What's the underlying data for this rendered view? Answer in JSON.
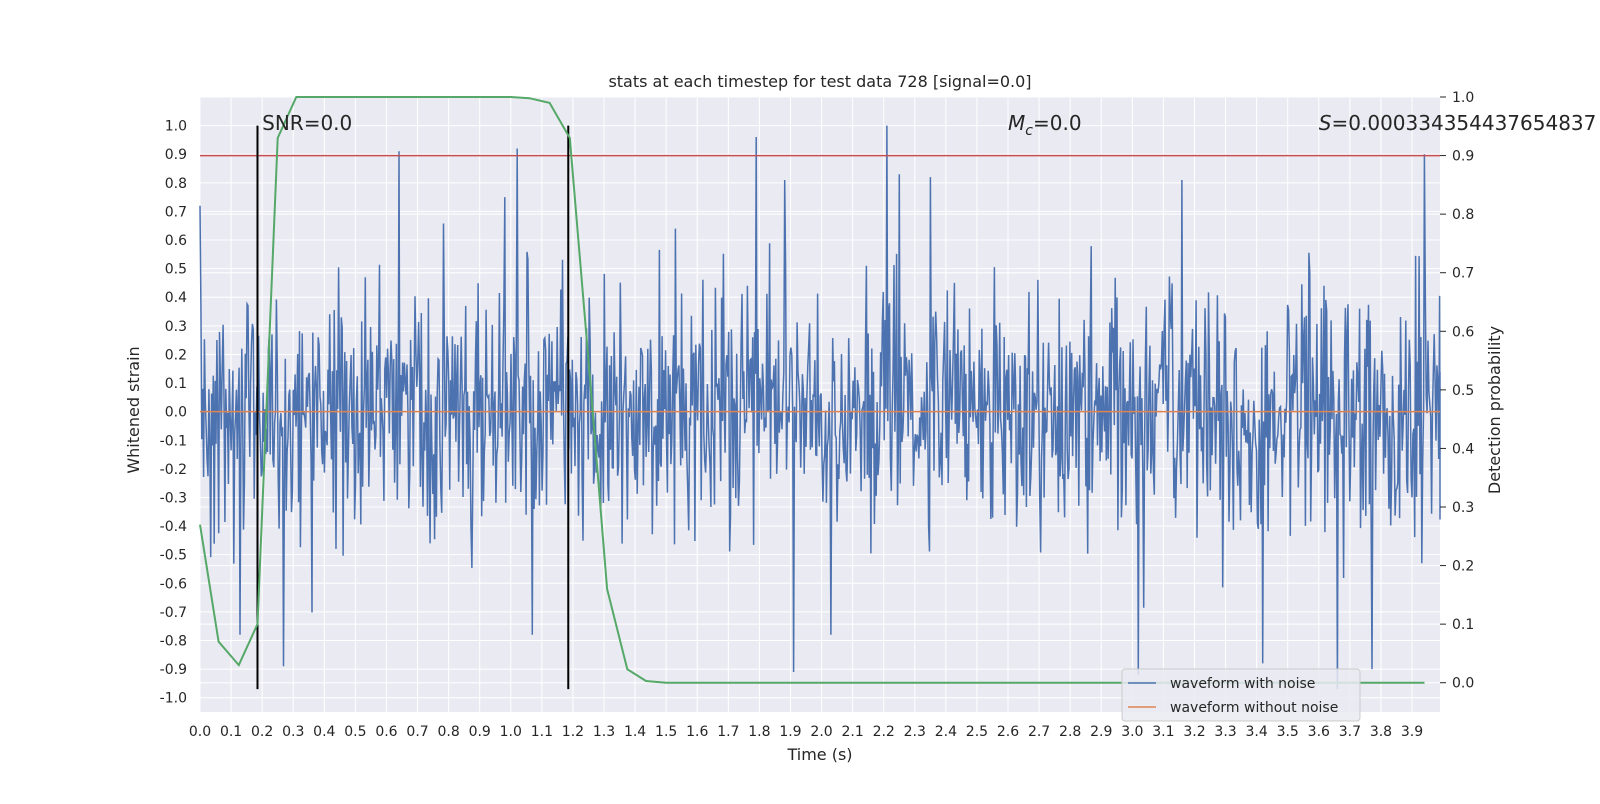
{
  "chart_data": {
    "type": "line",
    "title": "stats at each timestep for test data 728 [signal=0.0]",
    "xlabel": "Time (s)",
    "ylabel": "Whitened strain",
    "y2label": "Detection probability",
    "xlim": [
      0.0,
      3.99
    ],
    "ylim": [
      -1.05,
      1.1
    ],
    "y2lim": [
      -0.05,
      1.0
    ],
    "x_ticks": [
      0.0,
      0.1,
      0.2,
      0.3,
      0.4,
      0.5,
      0.6,
      0.7,
      0.8,
      0.9,
      1.0,
      1.1,
      1.2,
      1.3,
      1.4,
      1.5,
      1.6,
      1.7,
      1.8,
      1.9,
      2.0,
      2.1,
      2.2,
      2.3,
      2.4,
      2.5,
      2.6,
      2.7,
      2.8,
      2.9,
      3.0,
      3.1,
      3.2,
      3.3,
      3.4,
      3.5,
      3.6,
      3.7,
      3.8,
      3.9
    ],
    "x_tick_labels": [
      "0.0",
      "0.1",
      "0.2",
      "0.3",
      "0.4",
      "0.5",
      "0.6",
      "0.7",
      "0.8",
      "0.9",
      "1.0",
      "1.1",
      "1.2",
      "1.3",
      "1.4",
      "1.5",
      "1.6",
      "1.7",
      "1.8",
      "1.9",
      "2.0",
      "2.1",
      "2.2",
      "2.3",
      "2.4",
      "2.5",
      "2.6",
      "2.7",
      "2.8",
      "2.9",
      "3.0",
      "3.1",
      "3.2",
      "3.3",
      "3.4",
      "3.5",
      "3.6",
      "3.7",
      "3.8",
      "3.9"
    ],
    "y_ticks": [
      1.0,
      0.9,
      0.8,
      0.7,
      0.6,
      0.5,
      0.4,
      0.3,
      0.2,
      0.1,
      0.0,
      -0.1,
      -0.2,
      -0.3,
      -0.4,
      -0.5,
      -0.6,
      -0.7,
      -0.8,
      -0.9,
      -1.0
    ],
    "y_tick_labels": [
      "1.0",
      "0.9",
      "0.8",
      "0.7",
      "0.6",
      "0.5",
      "0.4",
      "0.3",
      "0.2",
      "0.1",
      "0.0",
      "-0.1",
      "-0.2",
      "-0.3",
      "-0.4",
      "-0.5",
      "-0.6",
      "-0.7",
      "-0.8",
      "-0.9",
      "-1.0"
    ],
    "y2_ticks": [
      1.0,
      0.9,
      0.8,
      0.7,
      0.6,
      0.5,
      0.4,
      0.3,
      0.2,
      0.1,
      0.0
    ],
    "y2_tick_labels": [
      "1.0",
      "0.9",
      "0.8",
      "0.7",
      "0.6",
      "0.5",
      "0.4",
      "0.3",
      "0.2",
      "0.1",
      "0.0"
    ],
    "grid": true,
    "legend_position": "bottom-right",
    "series": [
      {
        "name": "waveform with noise",
        "axis": "left",
        "color": "#4c72b0",
        "style": "noise",
        "duration": 4.0,
        "n_points": 1400,
        "band": 0.4,
        "peaks": [
          {
            "t": 0.0,
            "v": 0.72
          },
          {
            "t": 0.64,
            "v": 0.91
          },
          {
            "t": 1.02,
            "v": 0.92
          },
          {
            "t": 1.79,
            "v": 0.96
          },
          {
            "t": 1.88,
            "v": 0.81
          },
          {
            "t": 2.21,
            "v": 1.0
          },
          {
            "t": 2.25,
            "v": 0.83
          },
          {
            "t": 2.35,
            "v": 0.82
          },
          {
            "t": 3.16,
            "v": 0.81
          },
          {
            "t": 3.94,
            "v": 0.9
          },
          {
            "t": 0.98,
            "v": 0.75
          },
          {
            "t": 0.27,
            "v": -0.89
          },
          {
            "t": 1.91,
            "v": -0.91
          },
          {
            "t": 3.02,
            "v": -0.92
          },
          {
            "t": 3.42,
            "v": -0.88
          },
          {
            "t": 3.66,
            "v": -0.97
          },
          {
            "t": 1.07,
            "v": -0.78
          },
          {
            "t": 2.03,
            "v": -0.78
          },
          {
            "t": 0.13,
            "v": -0.78
          },
          {
            "t": 3.77,
            "v": -0.9
          }
        ]
      },
      {
        "name": "waveform without noise",
        "axis": "left",
        "color": "#dd8452",
        "x": [
          0.0,
          3.99
        ],
        "values": [
          0.0,
          0.0
        ]
      },
      {
        "name": "detection probability",
        "axis": "right",
        "color": "#55a868",
        "show_in_legend": false,
        "x": [
          0.0,
          0.06,
          0.125,
          0.185,
          0.25,
          0.31,
          0.375,
          0.44,
          0.5,
          0.56,
          0.625,
          0.69,
          0.75,
          0.81,
          0.875,
          0.935,
          1.0,
          1.06,
          1.125,
          1.19,
          1.25,
          1.31,
          1.375,
          1.435,
          1.5,
          1.56,
          1.625,
          1.69,
          1.75,
          1.81,
          1.875,
          1.94,
          2.0,
          2.06,
          2.125,
          2.19,
          2.25,
          2.31,
          2.375,
          2.44,
          2.5,
          2.56,
          2.625,
          2.69,
          2.75,
          2.81,
          2.875,
          2.94,
          3.0,
          3.06,
          3.125,
          3.19,
          3.25,
          3.31,
          3.375,
          3.44,
          3.5,
          3.56,
          3.625,
          3.69,
          3.75,
          3.81,
          3.875,
          3.94
        ],
        "values": [
          0.27,
          0.07,
          0.03,
          0.1,
          0.93,
          1.0,
          1.0,
          1.0,
          1.0,
          1.0,
          1.0,
          1.0,
          1.0,
          1.0,
          1.0,
          1.0,
          1.0,
          0.998,
          0.99,
          0.93,
          0.55,
          0.16,
          0.023,
          0.003,
          0.0,
          0.0,
          0.0,
          0.0,
          0.0,
          0.0,
          0.0,
          0.0,
          0.0,
          0.0,
          0.0,
          0.0,
          0.0,
          0.0,
          0.0,
          0.0,
          0.0,
          0.0,
          0.0,
          0.0,
          0.0,
          0.0,
          0.0,
          0.0,
          0.0,
          0.0,
          0.0,
          0.0,
          0.0,
          0.0,
          0.0,
          0.0,
          0.0,
          0.0,
          0.0,
          0.0,
          0.0,
          0.0,
          0.0,
          0.0
        ]
      }
    ],
    "reference_lines": [
      {
        "orientation": "horizontal",
        "axis": "right",
        "value": 0.9,
        "color": "#c44e52"
      },
      {
        "orientation": "vertical",
        "value": 0.185,
        "range": [
          -0.97,
          1.0
        ],
        "color": "#000000"
      },
      {
        "orientation": "vertical",
        "value": 1.185,
        "range": [
          -0.97,
          1.0
        ],
        "color": "#000000"
      }
    ],
    "annotations": [
      {
        "text": "SNR=0.0",
        "x": 0.2,
        "y": 1.02
      },
      {
        "text_italic": "M",
        "text_sub": "c",
        "text": "=0.0",
        "x": 2.6,
        "y": 1.02
      },
      {
        "text_italic": "S",
        "text": "=0.000334354437654837",
        "x": 3.6,
        "y": 1.02
      }
    ],
    "colors": {
      "background": "#eaeaf2",
      "grid": "#ffffff",
      "text": "#262626"
    }
  }
}
